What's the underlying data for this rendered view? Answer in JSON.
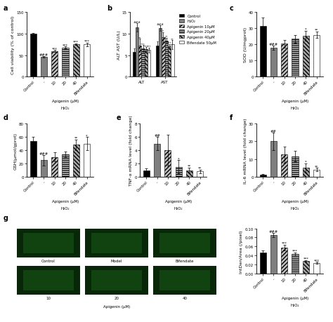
{
  "chart_data": [
    {
      "type": "bar",
      "label": "a",
      "y_label": "Cell viability (% of control)",
      "categories": [
        "Control",
        "-",
        "10",
        "20",
        "40",
        "Bifendate"
      ],
      "values": [
        100,
        46,
        60,
        68,
        76,
        75
      ],
      "errors": [
        1.5,
        2,
        2,
        2,
        2,
        4
      ],
      "annotations": [
        null,
        "###",
        "***",
        "***",
        "***",
        "***"
      ],
      "colors": [
        "#000000",
        "#7f7f7f",
        "#bfbfbf",
        "#d9d9d9",
        "#a6a6a6",
        "#ffffff"
      ],
      "ylim": [
        0,
        150
      ],
      "yticks": [
        0,
        50,
        100,
        150
      ],
      "x_sublabel": "Apigenin (μM)",
      "x_label": "H₂O₂"
    },
    {
      "type": "grouped_bar",
      "label": "b",
      "y_label": "ALT AST (U/L)",
      "categories": [
        "ALT",
        "AST"
      ],
      "legend": "upper left",
      "series": [
        {
          "name": "Control",
          "color": "#000000",
          "values": [
            5.8,
            7.2
          ],
          "errors": [
            0.8,
            1.0
          ],
          "annotations": [
            null,
            null
          ]
        },
        {
          "name": "H₂O₂",
          "color": "#7f7f7f",
          "values": [
            11.5,
            11.3
          ],
          "errors": [
            1.0,
            0.6
          ],
          "annotations": [
            "###",
            "###"
          ]
        },
        {
          "name": "Apigenin 10μM",
          "color": "#bfbfbf",
          "values": [
            7.3,
            9.2
          ],
          "errors": [
            1.5,
            1.2
          ],
          "annotations": [
            "**",
            "*"
          ]
        },
        {
          "name": "Apigenin 20μM",
          "color": "#d9d9d9",
          "values": [
            6.6,
            8.4
          ],
          "errors": [
            0.8,
            0.7
          ],
          "annotations": [
            "***",
            "**"
          ]
        },
        {
          "name": "Apigenin 40μM",
          "color": "#a6a6a6",
          "values": [
            6.4,
            7.0
          ],
          "errors": [
            0.5,
            0.6
          ],
          "annotations": [
            "***",
            "***"
          ]
        },
        {
          "name": "Bifendate 50μM",
          "color": "#ffffff",
          "values": [
            6.2,
            7.5
          ],
          "errors": [
            0.6,
            1.0
          ],
          "annotations": [
            "***",
            "**"
          ]
        }
      ],
      "ylim": [
        0,
        15
      ],
      "yticks": [
        0,
        5,
        10,
        15
      ]
    },
    {
      "type": "bar",
      "label": "c",
      "y_label": "SOD (U/mgprot)",
      "categories": [
        "Control",
        "-",
        "10",
        "20",
        "40",
        "Bifendate"
      ],
      "values": [
        31.5,
        18,
        20.5,
        23.5,
        25.5,
        26
      ],
      "errors": [
        5,
        1.5,
        2.5,
        2.5,
        3,
        2
      ],
      "annotations": [
        null,
        "###",
        null,
        null,
        "*",
        "**"
      ],
      "colors": [
        "#000000",
        "#7f7f7f",
        "#bfbfbf",
        "#d9d9d9",
        "#a6a6a6",
        "#ffffff"
      ],
      "ylim": [
        0,
        40
      ],
      "yticks": [
        0,
        10,
        20,
        30,
        40
      ],
      "x_sublabel": "Apigenin (μM)",
      "x_label": "H₂O₂"
    },
    {
      "type": "bar",
      "label": "d",
      "y_label": "GSH(μmol/gprot)",
      "categories": [
        "Control",
        "-",
        "10",
        "20",
        "40",
        "Bifendate"
      ],
      "values": [
        54,
        25,
        30,
        34,
        48,
        50
      ],
      "errors": [
        6,
        8,
        7,
        4,
        8,
        10
      ],
      "annotations": [
        null,
        "###",
        null,
        null,
        "**",
        "*"
      ],
      "colors": [
        "#000000",
        "#7f7f7f",
        "#bfbfbf",
        "#d9d9d9",
        "#a6a6a6",
        "#ffffff"
      ],
      "ylim": [
        0,
        80
      ],
      "yticks": [
        0,
        20,
        40,
        60,
        80
      ],
      "x_sublabel": "Apigenin (μM)",
      "x_label": "H₂O₂"
    },
    {
      "type": "bar",
      "label": "e",
      "y_label": "TNF-α mRNA level (fold change)",
      "categories": [
        "Control",
        "-",
        "10",
        "20",
        "40",
        "Bifendate"
      ],
      "values": [
        1,
        5,
        4,
        1.5,
        1,
        0.8
      ],
      "errors": [
        0.3,
        1,
        2.3,
        1,
        0.4,
        0.3
      ],
      "annotations": [
        null,
        "##",
        null,
        "*",
        "**",
        "**"
      ],
      "colors": [
        "#000000",
        "#7f7f7f",
        "#bfbfbf",
        "#d9d9d9",
        "#a6a6a6",
        "#ffffff"
      ],
      "ylim": [
        0,
        8
      ],
      "yticks": [
        0,
        2,
        4,
        6,
        8
      ],
      "x_sublabel": "Apigenin (μM)",
      "x_label": "H₂O₂"
    },
    {
      "type": "bar",
      "label": "f",
      "y_label": "IL-6 mRNA level (fold change)",
      "categories": [
        "Control",
        "-",
        "10",
        "20",
        "40",
        "Bifendate"
      ],
      "values": [
        1,
        20,
        12.5,
        11.5,
        5,
        4
      ],
      "errors": [
        0.5,
        5,
        4.5,
        3,
        2.5,
        1
      ],
      "annotations": [
        null,
        "##",
        null,
        null,
        "*",
        "**"
      ],
      "colors": [
        "#000000",
        "#7f7f7f",
        "#bfbfbf",
        "#d9d9d9",
        "#a6a6a6",
        "#ffffff"
      ],
      "ylim": [
        0,
        30
      ],
      "yticks": [
        0,
        10,
        20,
        30
      ],
      "x_sublabel": "Apigenin (μM)",
      "x_label": "H₂O₂"
    },
    {
      "type": "bar",
      "y_label": "IntDen/Area (/pixel)",
      "categories": [
        "Control",
        "-",
        "10",
        "20",
        "40",
        "Bifendate"
      ],
      "values": [
        0.046,
        0.085,
        0.058,
        0.043,
        0.028,
        0.024
      ],
      "errors": [
        0.006,
        0.005,
        0.006,
        0.004,
        0.002,
        0.002
      ],
      "annotations": [
        null,
        "###",
        "***",
        "***",
        "***",
        "***"
      ],
      "colors": [
        "#000000",
        "#7f7f7f",
        "#bfbfbf",
        "#d9d9d9",
        "#a6a6a6",
        "#ffffff"
      ],
      "ylim": [
        0,
        0.1
      ],
      "yticks": [
        {
          "value": 0,
          "label": "0.00"
        },
        {
          "value": 0.02,
          "label": "0.02"
        },
        {
          "value": 0.04,
          "label": "0.04"
        },
        {
          "value": 0.06,
          "label": "0.06"
        },
        {
          "value": 0.08,
          "label": "0.08"
        },
        {
          "value": 0.1,
          "label": "0.10"
        }
      ],
      "x_sublabel": "Apigenin (μM)",
      "x_label": "H₂O₂"
    }
  ],
  "image_panel": {
    "label": "g",
    "panels": [
      "Control",
      "Model",
      "Bifendate",
      "10",
      "20",
      "40"
    ],
    "x_sublabel": "Apigenin (μM)"
  }
}
